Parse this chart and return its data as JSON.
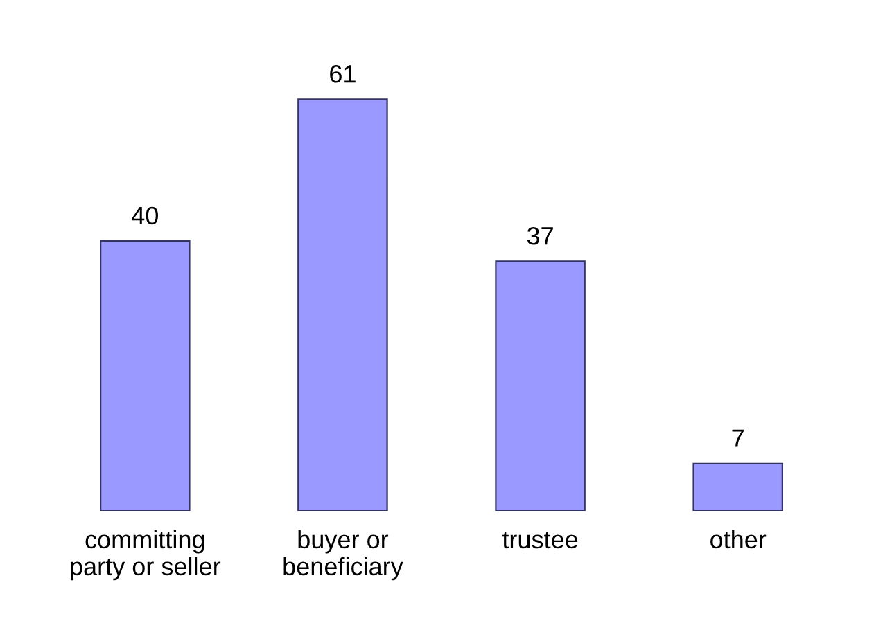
{
  "chart_data": {
    "type": "bar",
    "categories": [
      "committing\nparty or seller",
      "buyer or\nbeneficiary",
      "trustee",
      "other"
    ],
    "values": [
      40,
      61,
      37,
      7
    ],
    "color": "#9999ff",
    "data_labels": true
  }
}
